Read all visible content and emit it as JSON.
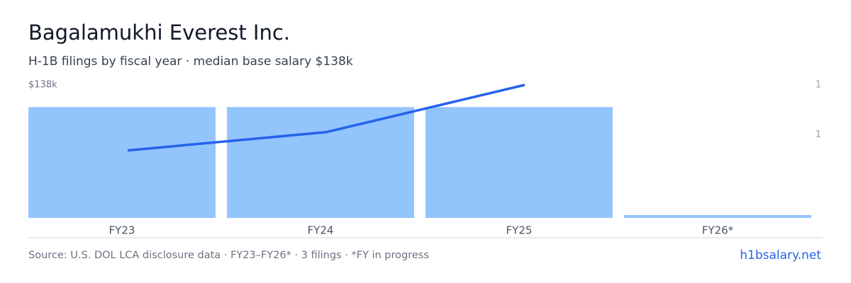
{
  "chart_data": {
    "type": "bar-line",
    "title": "Bagalamukhi Everest Inc.",
    "subtitle": "H-1B filings by fiscal year · median base salary $138k",
    "categories": [
      "FY23",
      "FY24",
      "FY25",
      "FY26*"
    ],
    "series": [
      {
        "name": "H-1B filings",
        "type": "bar",
        "axis": "y2",
        "color": "#93c5fd",
        "values": [
          1,
          1,
          1,
          0
        ]
      },
      {
        "name": "Median base salary",
        "type": "line",
        "color": "#2563eb",
        "values": [
          70000,
          89000,
          138000,
          null
        ]
      }
    ],
    "ylim": [
      0,
      138000
    ],
    "yticks": [
      {
        "value": 138000,
        "label": "$138k"
      }
    ],
    "y2lim": [
      0,
      1.2
    ],
    "y2ticks": [
      {
        "value": 1.2,
        "label": "1"
      },
      {
        "value": 0.75,
        "label": "1"
      }
    ],
    "footer": "Source: U.S. DOL LCA disclosure data · FY23–FY26* · 3 filings · *FY in progress",
    "brand": "h1bsalary.net"
  }
}
